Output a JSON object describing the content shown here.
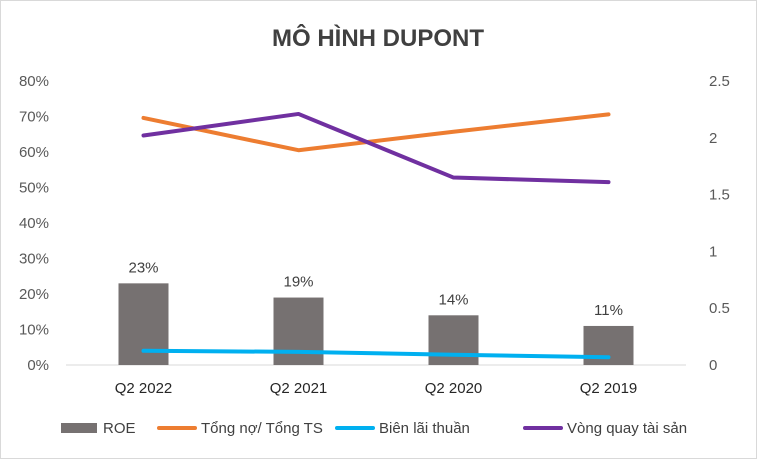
{
  "chart_data": {
    "type": "bar",
    "title": "MÔ HÌNH DUPONT",
    "categories": [
      "Q2 2022",
      "Q2 2021",
      "Q2 2020",
      "Q2 2019"
    ],
    "y_left": {
      "ticks": [
        "0%",
        "10%",
        "20%",
        "30%",
        "40%",
        "50%",
        "60%",
        "70%",
        "80%"
      ],
      "ylim": [
        0,
        0.8
      ]
    },
    "y_right": {
      "ticks": [
        "0",
        "0.5",
        "1",
        "1.5",
        "2",
        "2.5"
      ],
      "ylim": [
        0,
        2.5
      ]
    },
    "grid": false,
    "legend_position": "bottom",
    "series": [
      {
        "name": "ROE",
        "kind": "bar",
        "axis": "left",
        "color": "#767171",
        "values": [
          0.23,
          0.19,
          0.14,
          0.11
        ],
        "labels": [
          "23%",
          "19%",
          "14%",
          "11%"
        ]
      },
      {
        "name": "Tổng nợ/ Tổng TS",
        "kind": "line",
        "axis": "left",
        "color": "#ED7D31",
        "values": [
          0.696,
          0.605,
          0.657,
          0.706
        ]
      },
      {
        "name": "Biên lãi thuần",
        "kind": "line",
        "axis": "left",
        "color": "#00B0F0",
        "values": [
          0.04,
          0.037,
          0.029,
          0.022
        ]
      },
      {
        "name": "Vòng quay tài sản",
        "kind": "line",
        "axis": "right",
        "color": "#7030A0",
        "values": [
          2.02,
          2.21,
          1.65,
          1.61
        ]
      }
    ]
  }
}
